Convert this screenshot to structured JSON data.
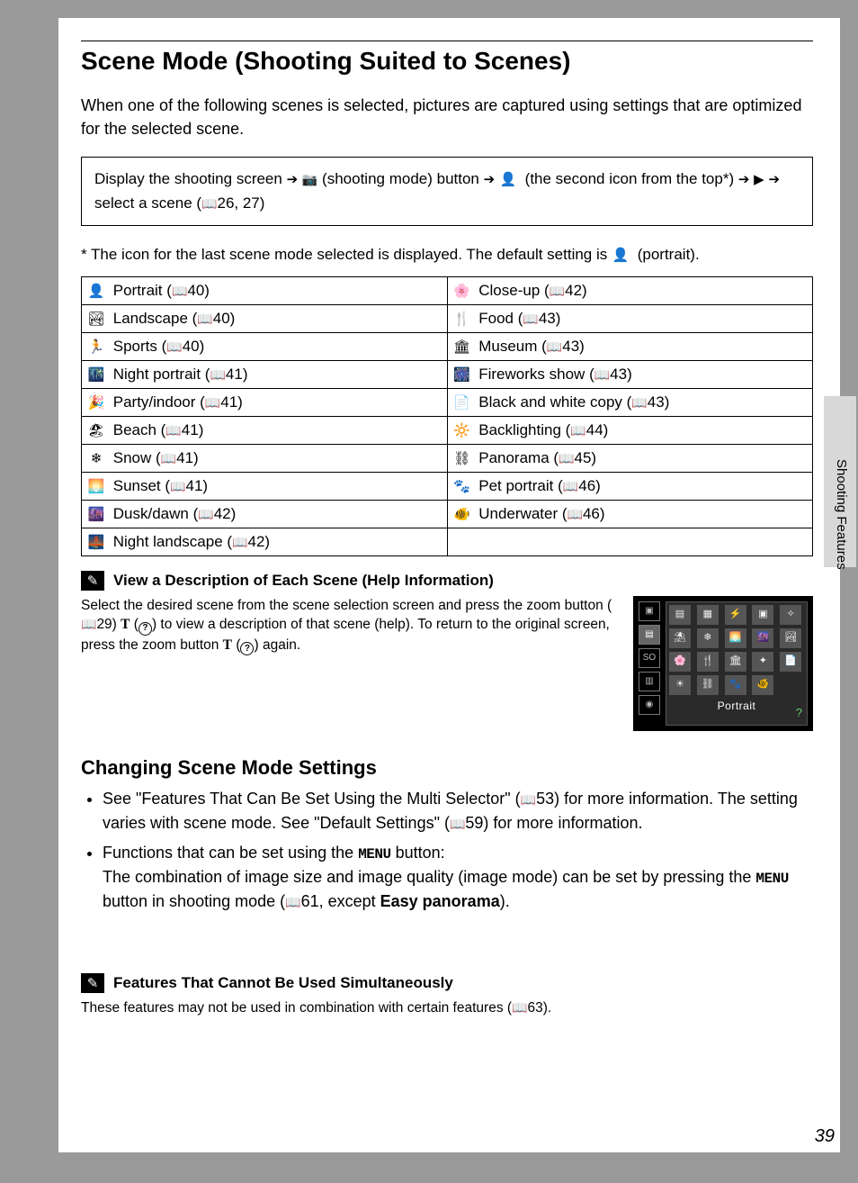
{
  "page_title": "Scene Mode (Shooting Suited to Scenes)",
  "intro": "When one of the following scenes is selected, pictures are captured using settings that are optimized for the selected scene.",
  "nav": {
    "pre": "Display the shooting screen ",
    "mid1": " (shooting mode) button ",
    "mid2": " (the second icon from the top*) ",
    "mid3": " ",
    "end_a": " select a scene (",
    "end_b": "26, 27)"
  },
  "footnote": "*  The icon for the last scene mode selected is displayed. The default setting is ",
  "footnote_end": " (portrait).",
  "scenes_left": [
    {
      "icon": "👤",
      "label": "Portrait",
      "page": "40"
    },
    {
      "icon": "🏞",
      "label": "Landscape",
      "page": "40"
    },
    {
      "icon": "🏃",
      "label": "Sports",
      "page": "40"
    },
    {
      "icon": "🌃",
      "label": "Night portrait",
      "page": "41"
    },
    {
      "icon": "🎉",
      "label": "Party/indoor",
      "page": "41"
    },
    {
      "icon": "🏖",
      "label": "Beach",
      "page": "41"
    },
    {
      "icon": "❄",
      "label": "Snow",
      "page": "41"
    },
    {
      "icon": "🌅",
      "label": "Sunset",
      "page": "41"
    },
    {
      "icon": "🌆",
      "label": "Dusk/dawn",
      "page": "42"
    },
    {
      "icon": "🌉",
      "label": "Night landscape",
      "page": "42"
    }
  ],
  "scenes_right": [
    {
      "icon": "🌸",
      "label": "Close-up",
      "page": "42"
    },
    {
      "icon": "🍴",
      "label": "Food",
      "page": "43"
    },
    {
      "icon": "🏛",
      "label": "Museum",
      "page": "43"
    },
    {
      "icon": "🎆",
      "label": "Fireworks show",
      "page": "43"
    },
    {
      "icon": "📄",
      "label": "Black and white copy",
      "page": "43"
    },
    {
      "icon": "🔆",
      "label": "Backlighting",
      "page": "44"
    },
    {
      "icon": "⛓",
      "label": "Panorama",
      "page": "45"
    },
    {
      "icon": "🐾",
      "label": "Pet portrait",
      "page": "46"
    },
    {
      "icon": "🐠",
      "label": "Underwater",
      "page": "46"
    }
  ],
  "note1": {
    "title": "View a Description of Each Scene (Help Information)",
    "p1a": "Select the desired scene from the scene selection screen and press the zoom button (",
    "p1b": "29) ",
    "p1c": " (",
    "p1d": ") to view a description of that scene (help). To return to the original screen, press the zoom button ",
    "p1e": " (",
    "p1f": ") again.",
    "preview_label": "Portrait"
  },
  "changing_h": "Changing Scene Mode Settings",
  "bul1a": "See \"Features That Can Be Set Using the Multi Selector\" (",
  "bul1b": "53) for more information. The setting varies with scene mode. See \"Default Settings\" (",
  "bul1c": "59) for more information.",
  "bul2a": "Functions that can be set using the ",
  "bul2b": " button:",
  "bul2c": "The combination of image size and image quality (image mode) can be set by pressing the ",
  "bul2d": " button in shooting mode (",
  "bul2e": "61, except ",
  "bul2f": "Easy panorama",
  "bul2g": ").",
  "menu_label": "MENU",
  "note2": {
    "title": "Features That Cannot Be Used Simultaneously",
    "body_a": "These features may not be used in combination with certain features (",
    "body_b": "63)."
  },
  "side_label": "Shooting Features",
  "page_number": "39",
  "preview_left_icons": [
    "▣",
    "▤",
    "SO",
    "▥",
    "◉"
  ],
  "preview_grid": [
    "▤",
    "▦",
    "⚡",
    "▣",
    "✧",
    "⛱",
    "❄",
    "🌅",
    "🌆",
    "🏞",
    "🌸",
    "🍴",
    "🏛",
    "✦",
    "📄",
    "☀",
    "⛓",
    "🐾",
    "🐠"
  ],
  "colors": {
    "page_bg": "#9a9a9a",
    "content_bg": "#ffffff",
    "tab_bg": "#d8d8d8"
  }
}
